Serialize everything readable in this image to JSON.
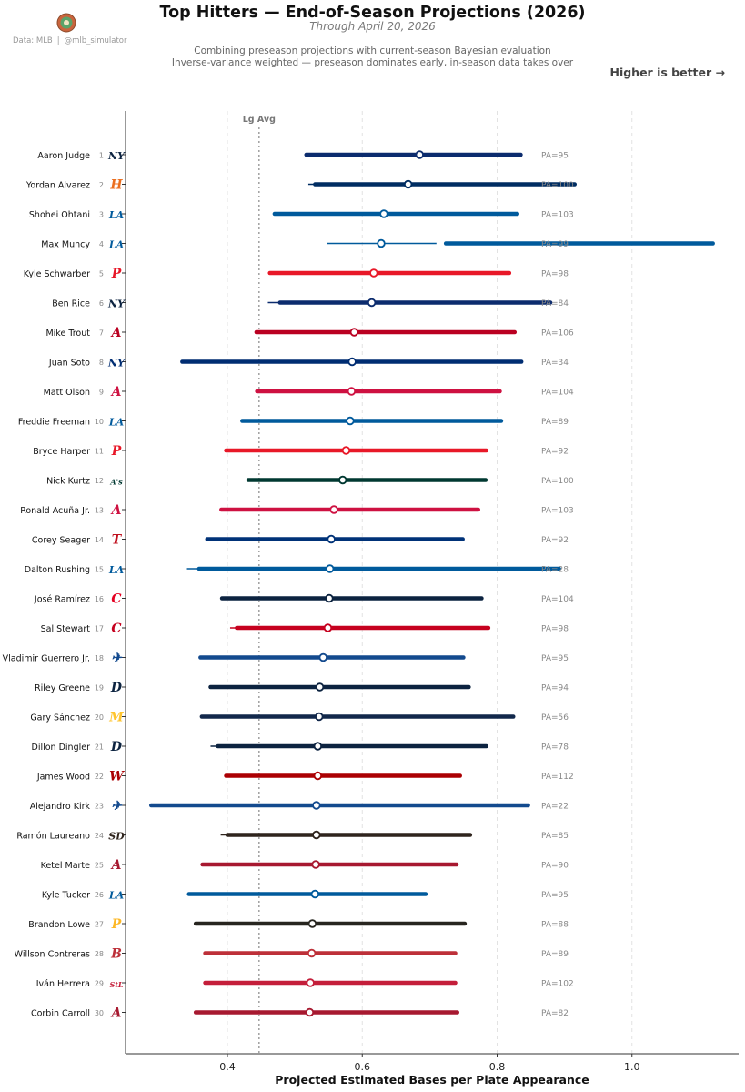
{
  "header": {
    "title": "Top Hitters — End-of-Season Projections (2026)",
    "subtitle": "Through April 20, 2026",
    "description_1": "Combining preseason projections with current-season Bayesian evaluation",
    "description_2": "Inverse-variance weighted — preseason dominates early, in-season data takes over",
    "higher_is_better": "Higher is better →"
  },
  "credit": {
    "data_source": "Data: MLB",
    "separator": "|",
    "handle": "@mlb_simulator"
  },
  "chart_data": {
    "type": "interval",
    "xlabel": "Projected Estimated Bases per Plate Appearance",
    "xlim": [
      0.25,
      1.15
    ],
    "xticks": [
      0.4,
      0.6,
      0.8,
      1.0
    ],
    "tick_labels": [
      "0.4",
      "0.6",
      "0.8",
      "1.0"
    ],
    "grid": true,
    "reference_line": {
      "label": "Lg Avg",
      "value": 0.447
    },
    "players": [
      {
        "rank": 1,
        "name": "Aaron Judge",
        "team": "NYY",
        "color": "#0c2c6e",
        "thin": [
          0.517,
          0.835
        ],
        "thick": [
          0.517,
          0.835
        ],
        "point": 0.685,
        "pa": "PA=95"
      },
      {
        "rank": 2,
        "name": "Yordan Alvarez",
        "team": "HOU",
        "color": "#002d62",
        "thin": [
          0.52,
          0.915
        ],
        "thick": [
          0.53,
          0.915
        ],
        "point": 0.668,
        "pa": "PA=100"
      },
      {
        "rank": 3,
        "name": "Shohei Ohtani",
        "team": "LAD",
        "color": "#005a9c",
        "thin": [
          0.47,
          0.83
        ],
        "thick": [
          0.47,
          0.83
        ],
        "point": 0.632,
        "pa": "PA=103"
      },
      {
        "rank": 4,
        "name": "Max Muncy",
        "team": "LAD",
        "color": "#005a9c",
        "thin": [
          0.548,
          0.71
        ],
        "thick": [
          0.724,
          1.12
        ],
        "point": 0.628,
        "pa": "PA=99"
      },
      {
        "rank": 5,
        "name": "Kyle Schwarber",
        "team": "PHI",
        "color": "#e81828",
        "thin": [
          0.463,
          0.818
        ],
        "thick": [
          0.463,
          0.818
        ],
        "point": 0.617,
        "pa": "PA=98"
      },
      {
        "rank": 6,
        "name": "Ben Rice",
        "team": "NYY",
        "color": "#0c2c6e",
        "thin": [
          0.46,
          0.879
        ],
        "thick": [
          0.478,
          0.879
        ],
        "point": 0.614,
        "pa": "PA=84"
      },
      {
        "rank": 7,
        "name": "Mike Trout",
        "team": "LAA",
        "color": "#ba0021",
        "thin": [
          0.443,
          0.826
        ],
        "thick": [
          0.443,
          0.826
        ],
        "point": 0.588,
        "pa": "PA=106"
      },
      {
        "rank": 8,
        "name": "Juan Soto",
        "team": "NYM",
        "color": "#002d72",
        "thin": [
          0.333,
          0.836
        ],
        "thick": [
          0.333,
          0.836
        ],
        "point": 0.585,
        "pa": "PA=34"
      },
      {
        "rank": 9,
        "name": "Matt Olson",
        "team": "ATL",
        "color": "#ce1141",
        "thin": [
          0.444,
          0.804
        ],
        "thick": [
          0.444,
          0.804
        ],
        "point": 0.584,
        "pa": "PA=104"
      },
      {
        "rank": 10,
        "name": "Freddie Freeman",
        "team": "LAD",
        "color": "#005a9c",
        "thin": [
          0.422,
          0.806
        ],
        "thick": [
          0.422,
          0.806
        ],
        "point": 0.582,
        "pa": "PA=89"
      },
      {
        "rank": 11,
        "name": "Bryce Harper",
        "team": "PHI",
        "color": "#e81828",
        "thin": [
          0.398,
          0.784
        ],
        "thick": [
          0.398,
          0.784
        ],
        "point": 0.576,
        "pa": "PA=92"
      },
      {
        "rank": 12,
        "name": "Nick Kurtz",
        "team": "ATH",
        "color": "#003831",
        "thin": [
          0.431,
          0.783
        ],
        "thick": [
          0.431,
          0.783
        ],
        "point": 0.571,
        "pa": "PA=100"
      },
      {
        "rank": 13,
        "name": "Ronald Acuña Jr.",
        "team": "ATL",
        "color": "#ce1141",
        "thin": [
          0.391,
          0.772
        ],
        "thick": [
          0.391,
          0.772
        ],
        "point": 0.558,
        "pa": "PA=103"
      },
      {
        "rank": 14,
        "name": "Corey Seager",
        "team": "TEX",
        "color": "#003278",
        "thin": [
          0.37,
          0.749
        ],
        "thick": [
          0.37,
          0.749
        ],
        "point": 0.554,
        "pa": "PA=92"
      },
      {
        "rank": 15,
        "name": "Dalton Rushing",
        "team": "LAD",
        "color": "#005a9c",
        "thin": [
          0.34,
          0.892
        ],
        "thick": [
          0.358,
          0.892
        ],
        "point": 0.552,
        "pa": "PA=28"
      },
      {
        "rank": 16,
        "name": "José Ramírez",
        "team": "CLE",
        "color": "#0c2340",
        "thin": [
          0.392,
          0.777
        ],
        "thick": [
          0.392,
          0.777
        ],
        "point": 0.551,
        "pa": "PA=104"
      },
      {
        "rank": 17,
        "name": "Sal Stewart",
        "team": "CIN",
        "color": "#c6011f",
        "thin": [
          0.404,
          0.787
        ],
        "thick": [
          0.414,
          0.787
        ],
        "point": 0.549,
        "pa": "PA=98"
      },
      {
        "rank": 18,
        "name": "Vladimir Guerrero Jr.",
        "team": "TOR",
        "color": "#134a8e",
        "thin": [
          0.36,
          0.75
        ],
        "thick": [
          0.36,
          0.75
        ],
        "point": 0.542,
        "pa": "PA=95"
      },
      {
        "rank": 19,
        "name": "Riley Greene",
        "team": "DET",
        "color": "#0c2340",
        "thin": [
          0.375,
          0.758
        ],
        "thick": [
          0.375,
          0.758
        ],
        "point": 0.537,
        "pa": "PA=94"
      },
      {
        "rank": 20,
        "name": "Gary Sánchez",
        "team": "MIL",
        "color": "#12284b",
        "thin": [
          0.36,
          0.824
        ],
        "thick": [
          0.362,
          0.824
        ],
        "point": 0.536,
        "pa": "PA=56"
      },
      {
        "rank": 21,
        "name": "Dillon Dingler",
        "team": "DET",
        "color": "#0c2340",
        "thin": [
          0.375,
          0.784
        ],
        "thick": [
          0.386,
          0.784
        ],
        "point": 0.534,
        "pa": "PA=78"
      },
      {
        "rank": 22,
        "name": "James Wood",
        "team": "WSH",
        "color": "#ab0003",
        "thin": [
          0.398,
          0.745
        ],
        "thick": [
          0.398,
          0.745
        ],
        "point": 0.534,
        "pa": "PA=112"
      },
      {
        "rank": 23,
        "name": "Alejandro Kirk",
        "team": "TOR",
        "color": "#134a8e",
        "thin": [
          0.287,
          0.846
        ],
        "thick": [
          0.287,
          0.846
        ],
        "point": 0.532,
        "pa": "PA=22"
      },
      {
        "rank": 24,
        "name": "Ramón Laureano",
        "team": "SD",
        "color": "#2f241d",
        "thin": [
          0.39,
          0.76
        ],
        "thick": [
          0.4,
          0.76
        ],
        "point": 0.532,
        "pa": "PA=85"
      },
      {
        "rank": 25,
        "name": "Ketel Marte",
        "team": "ARI",
        "color": "#a71930",
        "thin": [
          0.363,
          0.74
        ],
        "thick": [
          0.363,
          0.74
        ],
        "point": 0.531,
        "pa": "PA=90"
      },
      {
        "rank": 26,
        "name": "Kyle Tucker",
        "team": "LAD",
        "color": "#005a9c",
        "thin": [
          0.343,
          0.694
        ],
        "thick": [
          0.343,
          0.694
        ],
        "point": 0.53,
        "pa": "PA=95"
      },
      {
        "rank": 27,
        "name": "Brandon Lowe",
        "team": "PIT",
        "color": "#27251f",
        "thin": [
          0.353,
          0.752
        ],
        "thick": [
          0.353,
          0.752
        ],
        "point": 0.526,
        "pa": "PA=88"
      },
      {
        "rank": 28,
        "name": "Willson Contreras",
        "team": "BOS",
        "color": "#bd3039",
        "thin": [
          0.367,
          0.738
        ],
        "thick": [
          0.367,
          0.738
        ],
        "point": 0.525,
        "pa": "PA=89"
      },
      {
        "rank": 29,
        "name": "Iván Herrera",
        "team": "STL",
        "color": "#c41e3a",
        "thin": [
          0.367,
          0.738
        ],
        "thick": [
          0.367,
          0.738
        ],
        "point": 0.523,
        "pa": "PA=102"
      },
      {
        "rank": 30,
        "name": "Corbin Carroll",
        "team": "ARI",
        "color": "#a71930",
        "thin": [
          0.353,
          0.741
        ],
        "thick": [
          0.353,
          0.741
        ],
        "point": 0.522,
        "pa": "PA=82"
      }
    ]
  },
  "team_logos": {
    "NYY": {
      "glyph": "NY",
      "color": "#0c2340",
      "icon": "yankees-logo-icon"
    },
    "HOU": {
      "glyph": "H",
      "color": "#eb6e1f",
      "icon": "astros-logo-icon"
    },
    "LAD": {
      "glyph": "LA",
      "color": "#005a9c",
      "icon": "dodgers-logo-icon"
    },
    "PHI": {
      "glyph": "P",
      "color": "#e81828",
      "icon": "phillies-logo-icon"
    },
    "LAA": {
      "glyph": "A",
      "color": "#ba0021",
      "icon": "angels-logo-icon"
    },
    "NYM": {
      "glyph": "NY",
      "color": "#002d72",
      "icon": "mets-logo-icon"
    },
    "ATL": {
      "glyph": "A",
      "color": "#ce1141",
      "icon": "braves-logo-icon"
    },
    "ATH": {
      "glyph": "A's",
      "color": "#003831",
      "icon": "athletics-logo-icon"
    },
    "TEX": {
      "glyph": "T",
      "color": "#c0111f",
      "icon": "rangers-logo-icon"
    },
    "CLE": {
      "glyph": "C",
      "color": "#e50022",
      "icon": "guardians-logo-icon"
    },
    "CIN": {
      "glyph": "C",
      "color": "#c6011f",
      "icon": "reds-logo-icon"
    },
    "TOR": {
      "glyph": "✈",
      "color": "#134a8e",
      "icon": "blue-jays-logo-icon"
    },
    "DET": {
      "glyph": "D",
      "color": "#0c2340",
      "icon": "tigers-logo-icon"
    },
    "MIL": {
      "glyph": "M",
      "color": "#ffc52f",
      "icon": "brewers-logo-icon"
    },
    "WSH": {
      "glyph": "W",
      "color": "#ab0003",
      "icon": "nationals-logo-icon"
    },
    "SD": {
      "glyph": "SD",
      "color": "#2f241d",
      "icon": "padres-logo-icon"
    },
    "ARI": {
      "glyph": "A",
      "color": "#a71930",
      "icon": "diamondbacks-logo-icon"
    },
    "PIT": {
      "glyph": "P",
      "color": "#fdb827",
      "icon": "pirates-logo-icon"
    },
    "BOS": {
      "glyph": "B",
      "color": "#bd3039",
      "icon": "red-sox-logo-icon"
    },
    "STL": {
      "glyph": "StL",
      "color": "#c41e3a",
      "icon": "cardinals-logo-icon"
    }
  }
}
